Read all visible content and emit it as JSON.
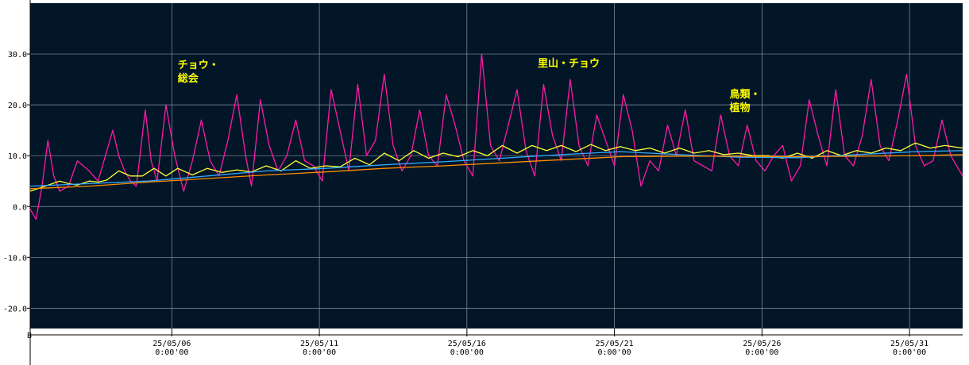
{
  "chart_data": {
    "type": "line",
    "corner_label": "B",
    "y_ticks": [
      "30.0",
      "20.0",
      "10.0",
      "0.0",
      "-10.0",
      "-20.0"
    ],
    "y_tick_values": [
      30,
      20,
      10,
      0,
      -10,
      -20
    ],
    "ylim": [
      -24,
      40
    ],
    "xlim_days": [
      0,
      31.6
    ],
    "grid": true,
    "background": "#021628",
    "x_ticks": [
      {
        "day": 4.8,
        "date": "25/05/06",
        "time": "0:00'00"
      },
      {
        "day": 9.8,
        "date": "25/05/11",
        "time": "0:00'00"
      },
      {
        "day": 14.8,
        "date": "25/05/16",
        "time": "0:00'00"
      },
      {
        "day": 19.8,
        "date": "25/05/21",
        "time": "0:00'00"
      },
      {
        "day": 24.8,
        "date": "25/05/26",
        "time": "0:00'00"
      },
      {
        "day": 29.8,
        "date": "25/05/31",
        "time": "0:00'00"
      }
    ],
    "annotations": [
      {
        "lines": [
          "チョウ・",
          "総会"
        ],
        "day": 5.0,
        "y": 27.2
      },
      {
        "lines": [
          "里山・チョウ"
        ],
        "day": 17.2,
        "y": 27.5
      },
      {
        "lines": [
          "鳥類・",
          "植物"
        ],
        "day": 23.7,
        "y": 21.4
      }
    ],
    "series": [
      {
        "color": "#ff1aa8",
        "x": [
          0,
          0.2,
          0.4,
          0.6,
          0.8,
          1.0,
          1.3,
          1.6,
          2.0,
          2.3,
          2.6,
          2.8,
          3.0,
          3.2,
          3.4,
          3.6,
          3.9,
          4.1,
          4.3,
          4.6,
          4.9,
          5.2,
          5.5,
          5.8,
          6.1,
          6.4,
          6.7,
          7.0,
          7.3,
          7.5,
          7.8,
          8.1,
          8.4,
          8.7,
          9.0,
          9.3,
          9.6,
          9.9,
          10.2,
          10.5,
          10.8,
          11.1,
          11.4,
          11.7,
          12.0,
          12.3,
          12.6,
          12.9,
          13.2,
          13.5,
          13.8,
          14.1,
          14.4,
          14.7,
          15.0,
          15.3,
          15.6,
          15.9,
          16.2,
          16.5,
          16.8,
          17.1,
          17.4,
          17.7,
          18.0,
          18.3,
          18.6,
          18.9,
          19.2,
          19.5,
          19.8,
          20.1,
          20.4,
          20.7,
          21.0,
          21.3,
          21.6,
          21.9,
          22.2,
          22.5,
          22.8,
          23.1,
          23.4,
          23.7,
          24.0,
          24.3,
          24.6,
          24.9,
          25.2,
          25.5,
          25.8,
          26.1,
          26.4,
          26.7,
          27.0,
          27.3,
          27.6,
          27.9,
          28.2,
          28.5,
          28.8,
          29.1,
          29.4,
          29.7,
          30.0,
          30.3,
          30.6,
          30.9,
          31.2,
          31.6
        ],
        "values": [
          -0.5,
          -2.5,
          4,
          13,
          6,
          3,
          4,
          9,
          7,
          5,
          11,
          15,
          10,
          7,
          5,
          4,
          19,
          9,
          5,
          20,
          10,
          3,
          9,
          17,
          9,
          6,
          13,
          22,
          10,
          4,
          21,
          12,
          7,
          10,
          17,
          9,
          8,
          5,
          23,
          15,
          7,
          24,
          10,
          13,
          26,
          12,
          7,
          10,
          19,
          10,
          8,
          22,
          16,
          9,
          6,
          30,
          12,
          9,
          16,
          23,
          11,
          6,
          24,
          14,
          9,
          25,
          12,
          8,
          18,
          13,
          8,
          22,
          15,
          4,
          9,
          7,
          16,
          10,
          19,
          9,
          8,
          7,
          18,
          10,
          8,
          16,
          9,
          7,
          10,
          12,
          5,
          8,
          21,
          14,
          8,
          23,
          10,
          8,
          14,
          25,
          12,
          9,
          17,
          26,
          12,
          8,
          9,
          17,
          10,
          6
        ]
      },
      {
        "color": "#ffff33",
        "x": [
          0,
          0.5,
          1.0,
          1.3,
          1.6,
          2.0,
          2.3,
          2.6,
          3.0,
          3.2,
          3.4,
          3.8,
          4.2,
          4.6,
          5.0,
          5.5,
          6.0,
          6.5,
          7.0,
          7.5,
          8.0,
          8.5,
          9.0,
          9.5,
          10.0,
          10.5,
          11.0,
          11.5,
          12.0,
          12.5,
          13.0,
          13.5,
          14.0,
          14.5,
          15.0,
          15.5,
          16.0,
          16.5,
          17.0,
          17.5,
          18.0,
          18.5,
          19.0,
          19.5,
          20.0,
          20.5,
          21.0,
          21.5,
          22.0,
          22.5,
          23.0,
          23.5,
          24.0,
          24.5,
          25.0,
          25.5,
          26.0,
          26.5,
          27.0,
          27.5,
          28.0,
          28.5,
          29.0,
          29.5,
          30.0,
          30.5,
          31.0,
          31.6
        ],
        "values": [
          3,
          4,
          5,
          4.5,
          4.2,
          5,
          4.8,
          5.2,
          7,
          6.5,
          6,
          6,
          7.5,
          6,
          7.5,
          6.2,
          7.5,
          6.7,
          7.2,
          6.8,
          8,
          7,
          9,
          7.5,
          8,
          7.8,
          9.5,
          8.2,
          10.5,
          9,
          11,
          9.5,
          10.5,
          9.8,
          11,
          10,
          12,
          10.5,
          12,
          11,
          12,
          10.8,
          12.2,
          11,
          11.8,
          11,
          11.5,
          10.5,
          11.5,
          10.5,
          11,
          10.2,
          10.5,
          10,
          10,
          9.5,
          10.5,
          9.5,
          11,
          10,
          11,
          10.5,
          11.5,
          11,
          12.5,
          11.5,
          12,
          11.5
        ]
      },
      {
        "color": "#33aaff",
        "x": [
          0,
          2,
          4,
          6,
          8,
          10,
          12,
          14,
          16,
          18,
          20,
          22,
          24,
          26,
          28,
          30,
          31.6
        ],
        "values": [
          4,
          4.5,
          5,
          6,
          7,
          7.5,
          8.2,
          8.8,
          9.5,
          10.2,
          10.8,
          10.2,
          9.7,
          9.6,
          10.2,
          10.8,
          11
        ]
      },
      {
        "color": "#ff8c00",
        "x": [
          0,
          2,
          4,
          6,
          8,
          10,
          12,
          14,
          16,
          18,
          20,
          22,
          24,
          26,
          28,
          30,
          31.6
        ],
        "values": [
          3.5,
          4,
          4.8,
          5.5,
          6.2,
          6.8,
          7.5,
          8,
          8.6,
          9.2,
          9.8,
          9.9,
          9.9,
          9.8,
          9.9,
          10,
          10.2
        ]
      }
    ]
  }
}
